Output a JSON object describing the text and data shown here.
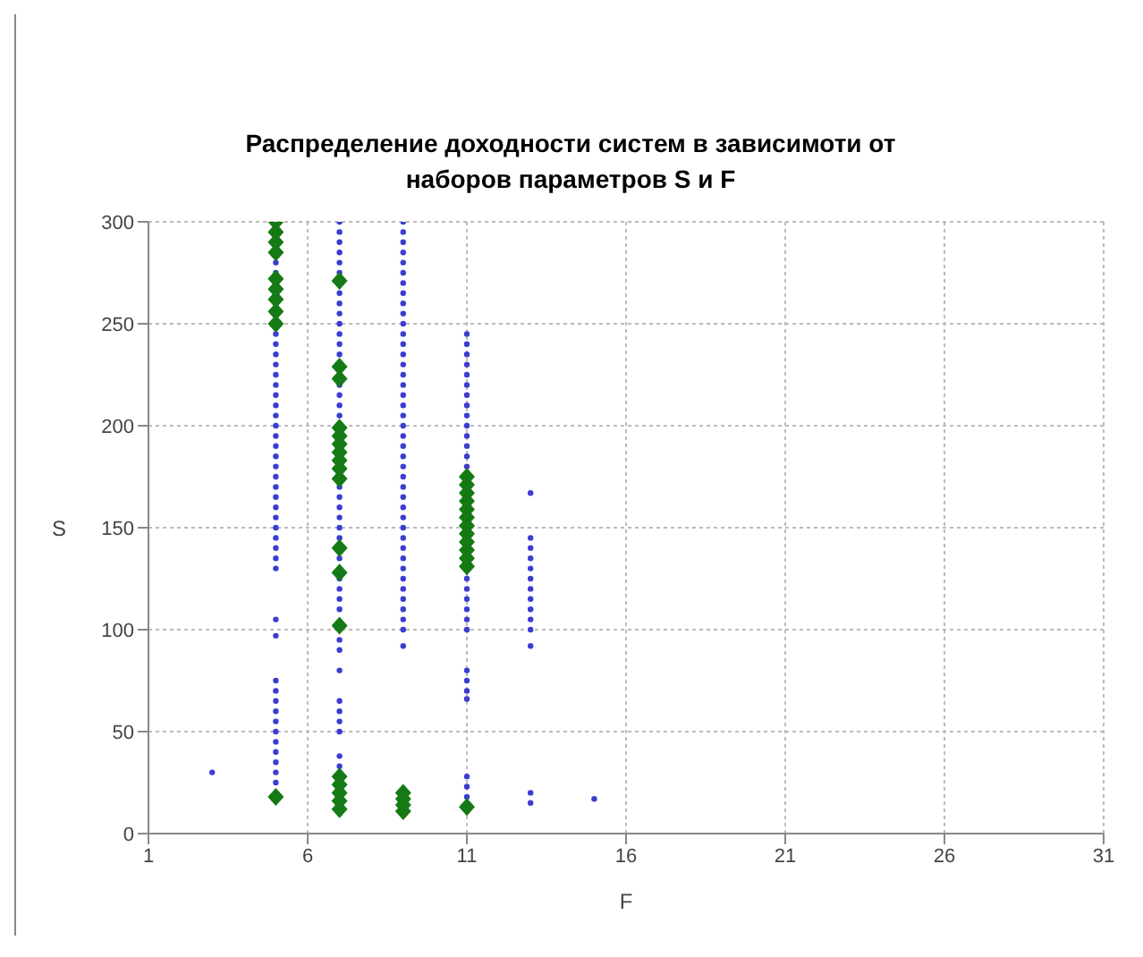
{
  "chart_data": {
    "type": "scatter",
    "title": "Распределение доходности систем в зависимоти от наборов параметров S и F",
    "xlabel": "F",
    "ylabel": "S",
    "xlim": [
      1,
      31
    ],
    "xticks": [
      1,
      6,
      11,
      16,
      21,
      26,
      31
    ],
    "ylim": [
      0,
      300
    ],
    "yticks": [
      0,
      50,
      100,
      150,
      200,
      250,
      300
    ],
    "grid": true,
    "legend": false,
    "series": [
      {
        "color": "#3c3cd2",
        "marker": "circle",
        "x": [
          3,
          5,
          5,
          5,
          5,
          5,
          5,
          5,
          5,
          5,
          5,
          5,
          5,
          5,
          5,
          5,
          5,
          5,
          5,
          5,
          5,
          5,
          5,
          5,
          5,
          5,
          5,
          5,
          5,
          5,
          5,
          5,
          5,
          5,
          5,
          5,
          5,
          5,
          5,
          5,
          7,
          7,
          7,
          7,
          7,
          7,
          7,
          7,
          7,
          7,
          7,
          7,
          7,
          7,
          7,
          7,
          7,
          7,
          7,
          7,
          7,
          7,
          7,
          7,
          7,
          7,
          7,
          7,
          7,
          7,
          7,
          7,
          7,
          7,
          7,
          7,
          7,
          9,
          9,
          9,
          9,
          9,
          9,
          9,
          9,
          9,
          9,
          9,
          9,
          9,
          9,
          9,
          9,
          9,
          9,
          9,
          9,
          9,
          9,
          9,
          9,
          9,
          9,
          9,
          9,
          9,
          9,
          9,
          9,
          9,
          9,
          9,
          9,
          9,
          9,
          9,
          9,
          9,
          9,
          11,
          11,
          11,
          11,
          11,
          11,
          11,
          11,
          11,
          11,
          11,
          11,
          11,
          11,
          11,
          11,
          11,
          11,
          11,
          11,
          11,
          11,
          11,
          11,
          11,
          11,
          11,
          13,
          13,
          13,
          13,
          13,
          13,
          13,
          13,
          13,
          13,
          13,
          13,
          13,
          13,
          15
        ],
        "values": [
          30,
          130,
          135,
          140,
          145,
          150,
          155,
          160,
          165,
          170,
          175,
          180,
          185,
          190,
          195,
          200,
          205,
          210,
          215,
          220,
          225,
          230,
          235,
          240,
          245,
          275,
          280,
          105,
          97,
          75,
          70,
          65,
          60,
          55,
          50,
          45,
          40,
          35,
          30,
          25,
          90,
          95,
          110,
          115,
          120,
          125,
          135,
          145,
          150,
          155,
          160,
          165,
          170,
          205,
          210,
          215,
          220,
          235,
          240,
          245,
          250,
          255,
          260,
          265,
          275,
          280,
          285,
          290,
          295,
          300,
          80,
          65,
          60,
          55,
          50,
          38,
          33,
          100,
          105,
          110,
          115,
          120,
          125,
          130,
          135,
          140,
          145,
          150,
          155,
          160,
          165,
          170,
          175,
          180,
          185,
          190,
          195,
          200,
          205,
          210,
          215,
          220,
          225,
          230,
          235,
          240,
          245,
          250,
          255,
          260,
          265,
          270,
          275,
          280,
          285,
          290,
          295,
          300,
          92,
          100,
          105,
          110,
          115,
          120,
          125,
          180,
          185,
          190,
          195,
          200,
          205,
          210,
          215,
          220,
          225,
          230,
          235,
          240,
          245,
          80,
          75,
          70,
          66,
          28,
          23,
          18,
          167,
          145,
          140,
          135,
          130,
          125,
          120,
          115,
          110,
          105,
          100,
          92,
          20,
          15,
          17
        ]
      },
      {
        "color": "#157a15",
        "marker": "diamond",
        "x": [
          5,
          5,
          5,
          5,
          5,
          5,
          5,
          5,
          5,
          5,
          7,
          7,
          7,
          7,
          7,
          7,
          7,
          7,
          7,
          7,
          7,
          7,
          7,
          7,
          7,
          7,
          7,
          7,
          9,
          9,
          9,
          9,
          11,
          11,
          11,
          11,
          11,
          11,
          11,
          11,
          11,
          11,
          11,
          11,
          11
        ],
        "values": [
          300,
          295,
          290,
          285,
          272,
          267,
          262,
          256,
          250,
          18,
          271,
          229,
          223,
          199,
          195,
          191,
          187,
          183,
          179,
          174,
          140,
          128,
          102,
          28,
          24,
          20,
          16,
          12,
          20,
          17,
          14,
          11,
          175,
          171,
          167,
          163,
          159,
          155,
          151,
          147,
          143,
          139,
          135,
          131,
          13
        ]
      }
    ]
  }
}
